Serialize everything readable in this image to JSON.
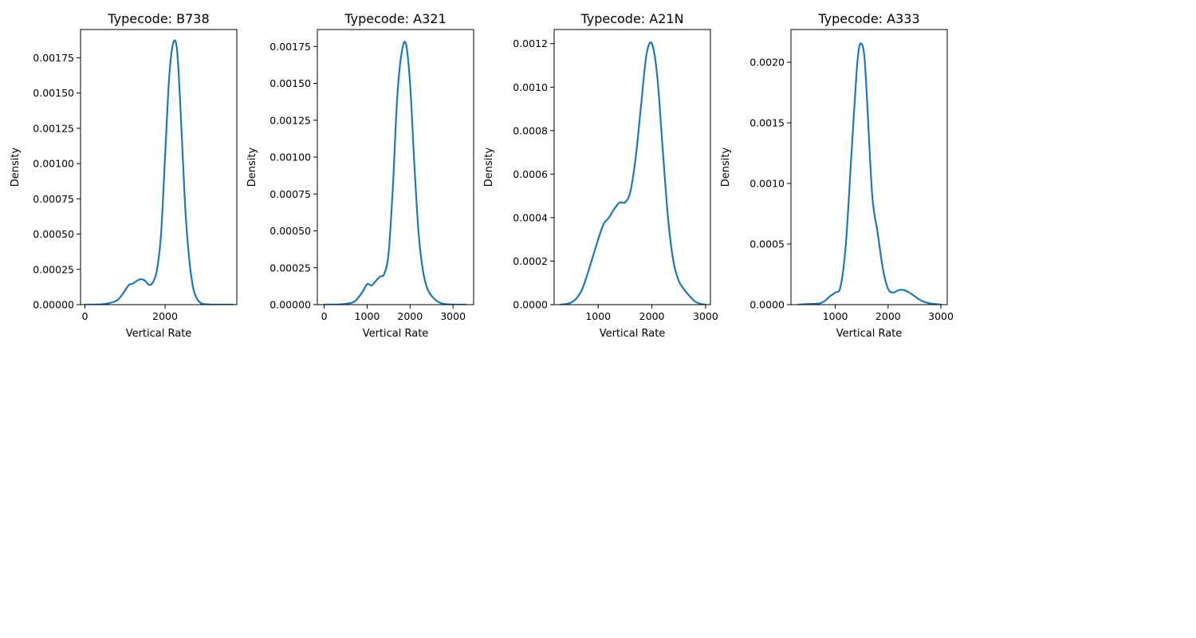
{
  "colors": {
    "line": "#1f77b4",
    "axis": "#000000",
    "background": "#ffffff"
  },
  "chart_data": [
    {
      "type": "line",
      "title": "Typecode: B738",
      "xlabel": "Vertical Rate",
      "ylabel": "Density",
      "xlim": [
        -110,
        3790
      ],
      "ylim": [
        0,
        0.00195
      ],
      "xticks": [
        0,
        2000
      ],
      "xtick_labels": [
        "0",
        "2000"
      ],
      "yticks": [
        0,
        0.00025,
        0.0005,
        0.00075,
        0.001,
        0.00125,
        0.0015,
        0.00175
      ],
      "ytick_labels": [
        "0.00000",
        "0.00025",
        "0.00050",
        "0.00075",
        "0.00100",
        "0.00125",
        "0.00150",
        "0.00175"
      ],
      "x": [
        0,
        400,
        600,
        800,
        900,
        1000,
        1100,
        1200,
        1300,
        1400,
        1500,
        1600,
        1700,
        1800,
        1900,
        2000,
        2100,
        2200,
        2300,
        2400,
        2500,
        2600,
        2700,
        2800,
        2900,
        3000,
        3200,
        3400,
        3700
      ],
      "y": [
        0,
        2e-06,
        1e-05,
        3e-05,
        6e-05,
        0.0001,
        0.00014,
        0.00015,
        0.00017,
        0.00018,
        0.00017,
        0.00014,
        0.00016,
        0.00025,
        0.0005,
        0.00105,
        0.0016,
        0.00185,
        0.0018,
        0.0013,
        0.0007,
        0.00033,
        0.00012,
        4e-05,
        1e-05,
        3e-06,
        0,
        0,
        0
      ],
      "grid": false,
      "legend": false
    },
    {
      "type": "line",
      "title": "Typecode: A321",
      "xlabel": "Vertical Rate",
      "ylabel": "Density",
      "xlim": [
        -160,
        3480
      ],
      "ylim": [
        0,
        0.001865
      ],
      "xticks": [
        0,
        1000,
        2000,
        3000
      ],
      "xtick_labels": [
        "0",
        "1000",
        "2000",
        "3000"
      ],
      "yticks": [
        0,
        0.00025,
        0.0005,
        0.00075,
        0.001,
        0.00125,
        0.0015,
        0.00175
      ],
      "ytick_labels": [
        "0.00000",
        "0.00025",
        "0.00050",
        "0.00075",
        "0.00100",
        "0.00125",
        "0.00150",
        "0.00175"
      ],
      "x": [
        0,
        400,
        600,
        700,
        800,
        900,
        1000,
        1100,
        1200,
        1300,
        1400,
        1500,
        1600,
        1700,
        1800,
        1900,
        2000,
        2100,
        2200,
        2300,
        2400,
        2500,
        2600,
        2700,
        2800,
        2900,
        3000,
        3300
      ],
      "y": [
        0,
        2e-06,
        1e-05,
        2e-05,
        5e-05,
        9e-05,
        0.00014,
        0.00013,
        0.00016,
        0.00019,
        0.00021,
        0.00035,
        0.0008,
        0.0014,
        0.0017,
        0.00177,
        0.0015,
        0.00095,
        0.00048,
        0.00023,
        0.00011,
        6e-05,
        3e-05,
        1.2e-05,
        5e-06,
        2e-06,
        0,
        0
      ],
      "grid": false,
      "legend": false
    },
    {
      "type": "line",
      "title": "Typecode: A21N",
      "xlabel": "Vertical Rate",
      "ylabel": "Density",
      "xlim": [
        180,
        3090
      ],
      "ylim": [
        0,
        0.001265
      ],
      "xticks": [
        1000,
        2000,
        3000
      ],
      "xtick_labels": [
        "1000",
        "2000",
        "3000"
      ],
      "yticks": [
        0,
        0.0002,
        0.0004,
        0.0006,
        0.0008,
        0.001,
        0.0012
      ],
      "ytick_labels": [
        "0.0000",
        "0.0002",
        "0.0004",
        "0.0006",
        "0.0008",
        "0.0010",
        "0.0012"
      ],
      "x": [
        300,
        400,
        500,
        600,
        700,
        800,
        900,
        1000,
        1100,
        1200,
        1300,
        1400,
        1500,
        1600,
        1700,
        1800,
        1900,
        2000,
        2100,
        2200,
        2300,
        2400,
        2500,
        2600,
        2700,
        2800,
        2900,
        3000
      ],
      "y": [
        0,
        3e-06,
        1e-05,
        3e-05,
        7e-05,
        0.00014,
        0.00022,
        0.0003,
        0.00037,
        0.0004,
        0.00044,
        0.00047,
        0.00047,
        0.00052,
        0.00068,
        0.00092,
        0.00115,
        0.0012,
        0.00105,
        0.00072,
        0.0004,
        0.0002,
        0.00011,
        7e-05,
        4e-05,
        1.5e-05,
        4e-06,
        0
      ],
      "grid": false,
      "legend": false
    },
    {
      "type": "line",
      "title": "Typecode: A333",
      "xlabel": "Vertical Rate",
      "ylabel": "Density",
      "xlim": [
        160,
        3120
      ],
      "ylim": [
        0,
        0.00227
      ],
      "xticks": [
        1000,
        2000,
        3000
      ],
      "xtick_labels": [
        "1000",
        "2000",
        "3000"
      ],
      "yticks": [
        0,
        0.0005,
        0.001,
        0.0015,
        0.002
      ],
      "ytick_labels": [
        "0.0000",
        "0.0005",
        "0.0010",
        "0.0015",
        "0.0020"
      ],
      "x": [
        300,
        500,
        700,
        800,
        900,
        1000,
        1100,
        1200,
        1300,
        1400,
        1450,
        1500,
        1550,
        1600,
        1700,
        1800,
        1900,
        2000,
        2100,
        2200,
        2300,
        2400,
        2500,
        2600,
        2700,
        2800,
        3000
      ],
      "y": [
        0,
        5e-06,
        1e-05,
        3e-05,
        7e-05,
        0.0001,
        0.00015,
        0.0005,
        0.0012,
        0.0019,
        0.00212,
        0.00215,
        0.00205,
        0.0017,
        0.0009,
        0.0006,
        0.0003,
        0.00013,
        0.0001,
        0.00012,
        0.00012,
        0.0001,
        7e-05,
        4e-05,
        2e-05,
        1e-05,
        0
      ],
      "grid": false,
      "legend": false
    }
  ]
}
